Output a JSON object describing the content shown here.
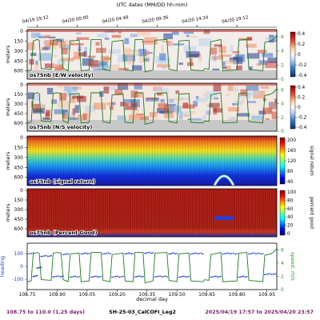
{
  "figure": {
    "top_axis_label": "UTC dates (MM/DD hh:mm)",
    "top_ticks": [
      "04/19 19:12",
      "04/20 00:00",
      "04/20 04:48",
      "04/20 09:36",
      "04/20 14:24",
      "04/20 19:12"
    ],
    "top_tick_days": [
      108.8,
      109.0,
      109.2,
      109.4,
      109.6,
      109.8
    ],
    "footer_left": "108.75 to 110.0 (1.25 days)",
    "footer_center": "SH-25-03_CalCOFI_Leg2",
    "footer_right": "2025/04/19 17:57 to 2025/04/20 23:57",
    "colors": {
      "footer_left": "#7a1f6e",
      "footer_right": "#7a1f6e",
      "speed_line": "#1f7a1f",
      "speed_axis_text": "#2e8b2e",
      "heading_points": "#1e3fd0",
      "heading_axis_text": "#1e3fd0"
    }
  },
  "chart_data": [
    {
      "type": "heatmap",
      "panel_label": "os75nb (E/W velocity)",
      "ylabel": "meters",
      "y_ticks": [
        0,
        150,
        300,
        450,
        600
      ],
      "colorbar_ticks": [
        0.4,
        0.2,
        0.0,
        -0.2,
        -0.4
      ],
      "colormap": "diverging blue-white-red",
      "clim": [
        -0.4,
        0.4
      ],
      "overlay_series": "ship speed (m/s)",
      "right_ticks": [
        0,
        2,
        4,
        6
      ],
      "right_ylim": [
        0,
        7
      ]
    },
    {
      "type": "heatmap",
      "panel_label": "os75nb (N/S velocity)",
      "ylabel": "meters",
      "y_ticks": [
        0,
        150,
        300,
        450,
        600
      ],
      "colorbar_ticks": [
        0.4,
        0.2,
        0.0,
        -0.2,
        -0.4
      ],
      "colormap": "diverging blue-white-red",
      "clim": [
        -0.4,
        0.4
      ],
      "overlay_series": "ship speed (m/s)",
      "right_ticks": [
        0,
        2,
        4,
        6
      ],
      "right_ylim": [
        0,
        7
      ]
    },
    {
      "type": "heatmap",
      "panel_label": "os75nb (signal return)",
      "ylabel": "meters",
      "y_ticks": [
        0,
        150,
        300,
        450,
        600
      ],
      "colorbar_label": "signal return",
      "colorbar_ticks": [
        200,
        160,
        120,
        80,
        40
      ],
      "colormap": "jet",
      "clim": [
        20,
        210
      ]
    },
    {
      "type": "heatmap",
      "panel_label": "os75nb (Percent Good)",
      "ylabel": "meters",
      "y_ticks": [
        0,
        150,
        300,
        450,
        600
      ],
      "colorbar_label": "percent good",
      "colorbar_ticks": [
        100,
        80,
        60,
        40,
        20,
        0
      ],
      "colormap": "jet",
      "clim": [
        0,
        100
      ]
    },
    {
      "type": "line",
      "xlabel": "decimal day",
      "x_ticks": [
        "108.75",
        "108.90",
        "109.05",
        "109.20",
        "109.35",
        "109.50",
        "109.65",
        "109.80",
        "109.95"
      ],
      "xlim": [
        108.75,
        110.0
      ],
      "left_label": "heading",
      "left_ticks": [
        -100,
        0,
        100
      ],
      "left_ylim": [
        -180,
        180
      ],
      "right_label": "speed, m/s",
      "right_ticks": [
        0,
        2,
        4,
        6
      ],
      "right_ylim": [
        0,
        7
      ],
      "speed": {
        "x": [
          108.75,
          108.77,
          108.78,
          108.8,
          108.81,
          108.82,
          108.87,
          108.88,
          108.9,
          108.92,
          108.93,
          108.955,
          108.965,
          109.01,
          109.02,
          109.06,
          109.07,
          109.12,
          109.13,
          109.165,
          109.175,
          109.23,
          109.24,
          109.28,
          109.29,
          109.33,
          109.34,
          109.38,
          109.39,
          109.45,
          109.46,
          109.5,
          109.51,
          109.56,
          109.57,
          109.63,
          109.64,
          109.66,
          109.67,
          109.72,
          109.73,
          109.8,
          109.81,
          109.85,
          109.86,
          109.93,
          109.94,
          109.97,
          109.985,
          110.0
        ],
        "y": [
          1.2,
          1.3,
          5.4,
          5.6,
          5.5,
          1.5,
          1.4,
          5.5,
          5.6,
          5.5,
          1.5,
          1.2,
          5.4,
          5.5,
          1.2,
          1.3,
          5.6,
          5.6,
          1.4,
          1.2,
          5.3,
          5.5,
          1.3,
          1.2,
          5.6,
          5.6,
          1.0,
          1.3,
          5.5,
          5.6,
          1.4,
          1.2,
          5.4,
          5.5,
          1.3,
          1.2,
          1.5,
          1.4,
          5.3,
          5.6,
          1.2,
          1.3,
          5.5,
          5.6,
          1.4,
          1.2,
          5.2,
          5.4,
          5.7,
          6.2
        ]
      },
      "heading_segments": [
        {
          "x0": 108.75,
          "x1": 108.78,
          "y": 100
        },
        {
          "x0": 108.8,
          "x1": 108.82,
          "y": -10
        },
        {
          "x0": 108.82,
          "x1": 108.87,
          "y": 80
        },
        {
          "x0": 108.93,
          "x1": 108.955,
          "y": 95
        },
        {
          "x0": 109.02,
          "x1": 109.06,
          "y": 100
        },
        {
          "x0": 109.13,
          "x1": 109.165,
          "y": 100
        },
        {
          "x0": 109.24,
          "x1": 109.28,
          "y": 100
        },
        {
          "x0": 109.34,
          "x1": 109.38,
          "y": 105
        },
        {
          "x0": 109.46,
          "x1": 109.5,
          "y": 100
        },
        {
          "x0": 109.57,
          "x1": 109.63,
          "y": 100
        },
        {
          "x0": 109.73,
          "x1": 109.8,
          "y": 100
        },
        {
          "x0": 109.86,
          "x1": 109.93,
          "y": 100
        },
        {
          "x0": 108.78,
          "x1": 108.8,
          "y": -75
        },
        {
          "x0": 108.88,
          "x1": 108.93,
          "y": -78
        },
        {
          "x0": 108.965,
          "x1": 109.01,
          "y": -80
        },
        {
          "x0": 109.07,
          "x1": 109.12,
          "y": -80
        },
        {
          "x0": 109.175,
          "x1": 109.23,
          "y": -80
        },
        {
          "x0": 109.29,
          "x1": 109.33,
          "y": -78
        },
        {
          "x0": 109.39,
          "x1": 109.45,
          "y": -78
        },
        {
          "x0": 109.51,
          "x1": 109.56,
          "y": -80
        },
        {
          "x0": 109.67,
          "x1": 109.72,
          "y": -80
        },
        {
          "x0": 109.81,
          "x1": 109.85,
          "y": -80
        },
        {
          "x0": 109.94,
          "x1": 110.0,
          "y": -60
        }
      ]
    }
  ]
}
